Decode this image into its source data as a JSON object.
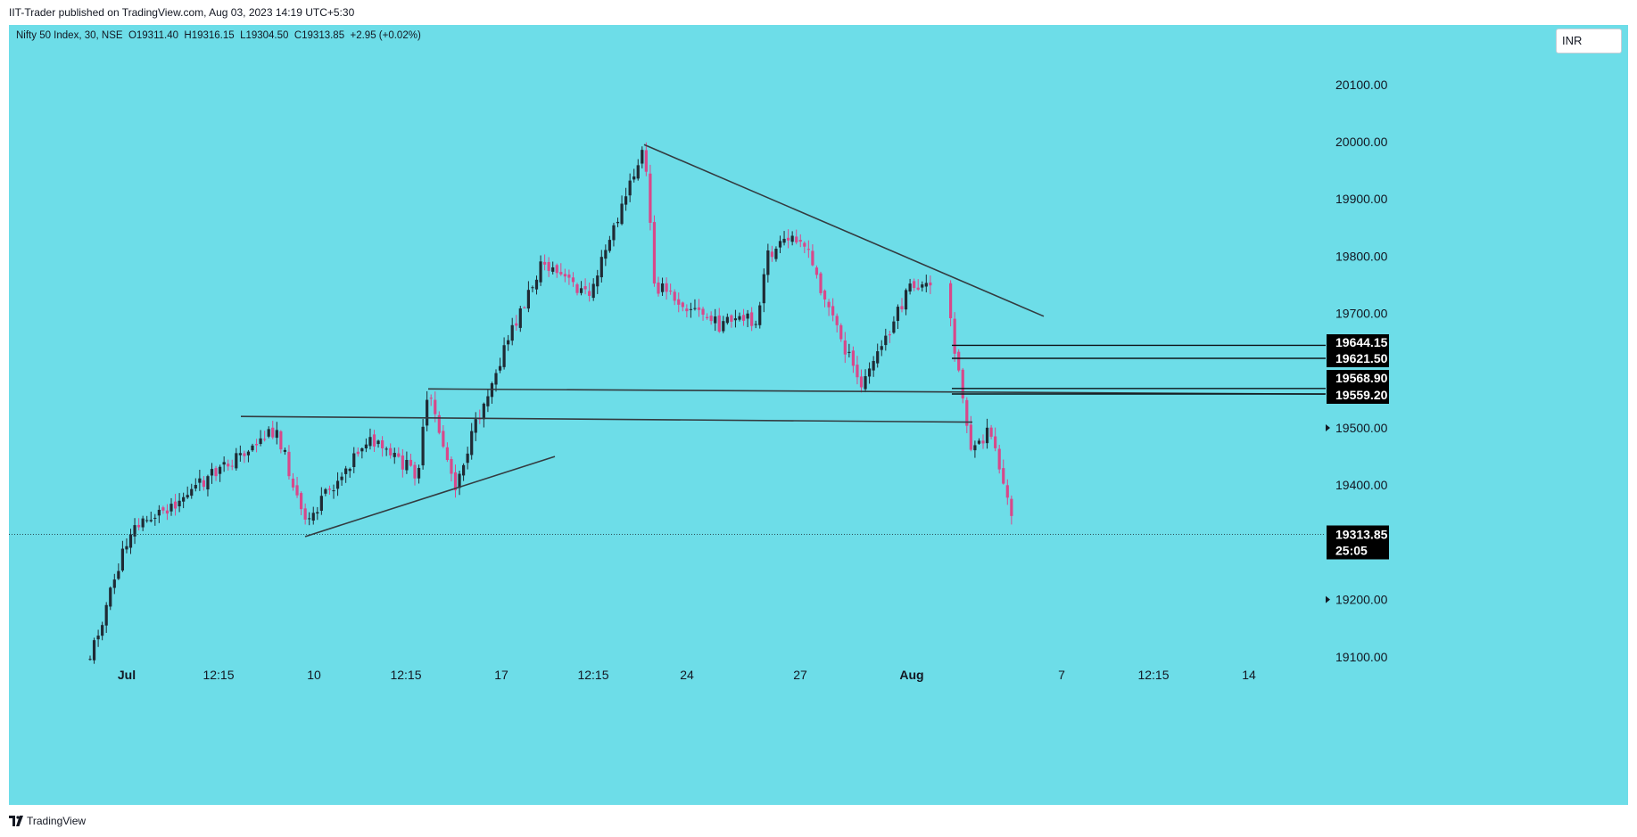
{
  "header": {
    "publish_line": "IIT-Trader published on TradingView.com, Aug 03, 2023 14:19 UTC+5:30"
  },
  "legend": {
    "symbol": "Nifty 50 Index, 30, NSE",
    "open": "O19311.40",
    "high": "H19316.15",
    "low": "L19304.50",
    "close": "C19313.85",
    "change": "+2.95 (+0.02%)"
  },
  "currency_button": "INR",
  "footer": {
    "brand": "TradingView"
  },
  "colors": {
    "background": "#6ddde8",
    "up_candle": "#1f2a34",
    "down_candle": "#d8488a",
    "drawing": "#333b40",
    "tag_background": "#000000"
  },
  "chart_data": {
    "type": "candlestick",
    "symbol": "Nifty 50 Index",
    "interval": "30",
    "exchange": "NSE",
    "currency": "INR",
    "y_range": [
      19100,
      20170
    ],
    "price_axis_labels": [
      "20100.00",
      "20000.00",
      "19900.00",
      "19800.00",
      "19700.00",
      "19500.00",
      "19400.00",
      "19200.00",
      "19100.00"
    ],
    "x_axis_labels": [
      "Jul",
      "12:15",
      "10",
      "12:15",
      "17",
      "12:15",
      "24",
      "27",
      "Aug",
      "7",
      "12:15",
      "14"
    ],
    "last_price": {
      "value": "19313.85",
      "countdown": "25:05"
    },
    "level_tags": [
      "19644.15",
      "19621.50",
      "19568.90",
      "19559.20"
    ],
    "series": [
      {
        "name": "",
        "approx_close_path": [
          {
            "x": "Jun 30",
            "y": 19100
          },
          {
            "x": "Jul 3",
            "y": 19320
          },
          {
            "x": "Jul 5",
            "y": 19390
          },
          {
            "x": "Jul 7",
            "y": 19500
          },
          {
            "x": "Jul 10",
            "y": 19330
          },
          {
            "x": "Jul 12",
            "y": 19480
          },
          {
            "x": "Jul 13",
            "y": 19420
          },
          {
            "x": "Jul 14",
            "y": 19560
          },
          {
            "x": "Jul 14 late",
            "y": 19400
          },
          {
            "x": "Jul 17",
            "y": 19600
          },
          {
            "x": "Jul 18",
            "y": 19790
          },
          {
            "x": "Jul 19",
            "y": 19730
          },
          {
            "x": "Jul 20",
            "y": 19990
          },
          {
            "x": "Jul 21",
            "y": 19750
          },
          {
            "x": "Jul 24",
            "y": 19680
          },
          {
            "x": "Jul 25",
            "y": 19690
          },
          {
            "x": "Jul 26",
            "y": 19800
          },
          {
            "x": "Jul 27",
            "y": 19840
          },
          {
            "x": "Jul 28",
            "y": 19570
          },
          {
            "x": "Jul 31",
            "y": 19750
          },
          {
            "x": "Aug 1",
            "y": 19740
          },
          {
            "x": "Aug 2",
            "y": 19450
          },
          {
            "x": "Aug 2 late",
            "y": 19500
          },
          {
            "x": "Aug 3",
            "y": 19313.85
          }
        ]
      }
    ],
    "drawings": {
      "trendlines": [
        {
          "from": {
            "x": "Jul 20",
            "y": 19995
          },
          "to": {
            "x": "Aug 4",
            "y": 19695
          }
        },
        {
          "from": {
            "x": "Jul 10",
            "y": 19310
          },
          "to": {
            "x": "Jul 15",
            "y": 19450
          }
        },
        {
          "from": {
            "x": "Jul 6",
            "y": 19520
          },
          "to": {
            "x": "Aug 2",
            "y": 19510
          }
        },
        {
          "from": {
            "x": "Jul 14",
            "y": 19568
          },
          "to": {
            "x": "Aug 7+",
            "y": 19559
          }
        }
      ],
      "horizontal_rays": [
        19644.15,
        19621.5,
        19568.9,
        19559.2
      ]
    },
    "grid": false,
    "legend": "top-left"
  }
}
